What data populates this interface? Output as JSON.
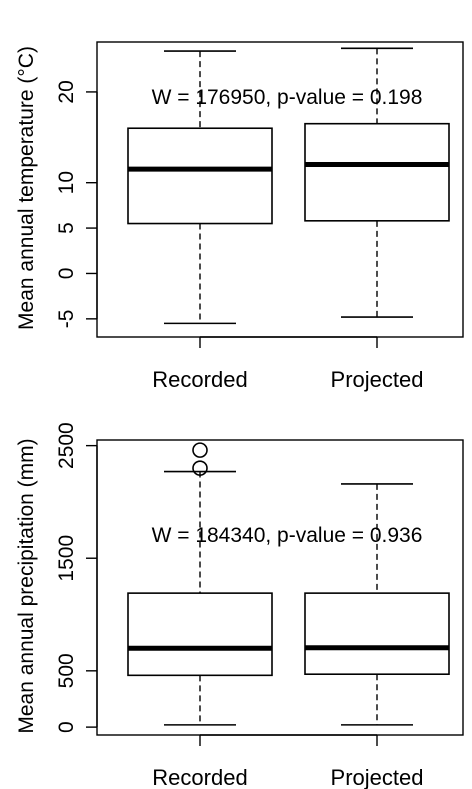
{
  "chart_data": [
    {
      "type": "box",
      "ylabel": "Mean annual temperature (°C)",
      "yticks": [
        -5,
        0,
        5,
        10,
        20
      ],
      "ylim": [
        -7,
        25.5
      ],
      "categories": [
        "Recorded",
        "Projected"
      ],
      "boxes": [
        {
          "name": "Recorded",
          "whisker_low": -5.5,
          "q1": 5.5,
          "median": 11.5,
          "q3": 16.0,
          "whisker_high": 24.5,
          "outliers": []
        },
        {
          "name": "Projected",
          "whisker_low": -4.8,
          "q1": 5.8,
          "median": 12.0,
          "q3": 16.5,
          "whisker_high": 24.8,
          "outliers": []
        }
      ],
      "annotation": "W = 176950, p-value = 0.198"
    },
    {
      "type": "box",
      "ylabel": "Mean annual precipitation (mm)",
      "yticks": [
        0,
        500,
        1500,
        2500
      ],
      "ylim": [
        -70,
        2550
      ],
      "categories": [
        "Recorded",
        "Projected"
      ],
      "boxes": [
        {
          "name": "Recorded",
          "whisker_low": 20,
          "q1": 460,
          "median": 700,
          "q3": 1190,
          "whisker_high": 2270,
          "outliers": [
            2300,
            2460
          ]
        },
        {
          "name": "Projected",
          "whisker_low": 20,
          "q1": 470,
          "median": 705,
          "q3": 1190,
          "whisker_high": 2160,
          "outliers": []
        }
      ],
      "annotation": "W = 184340, p-value = 0.936"
    }
  ]
}
